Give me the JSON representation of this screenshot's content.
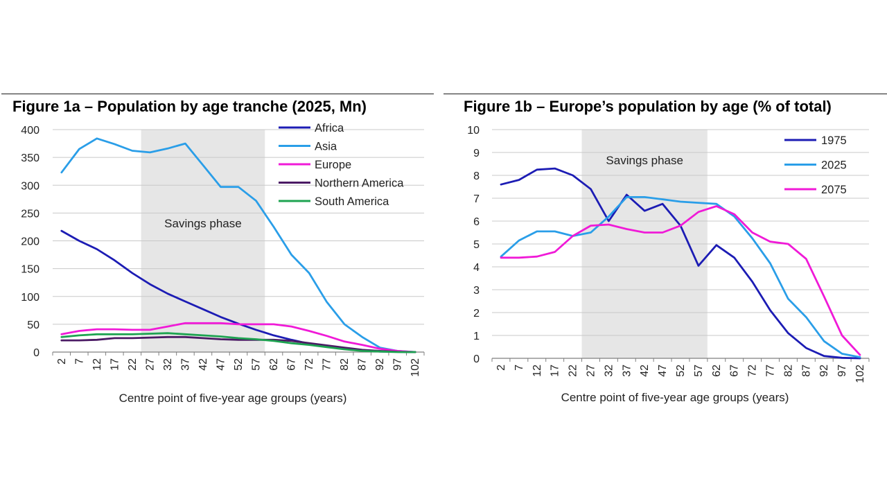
{
  "colors": {
    "africa": "#1c1cb4",
    "asia": "#2a9ee8",
    "europe": "#f01ad7",
    "northern_america": "#4b1a64",
    "south_america": "#1ea351",
    "y1975": "#1c1cb4",
    "y2025": "#2a9ee8",
    "y2075": "#f01ad7",
    "band": "#e6e6e6",
    "grid": "#c8c8c8"
  },
  "chart_data": [
    {
      "type": "line",
      "title": "Figure 1a – Population by age tranche (2025, Mn)",
      "xlabel": "Centre point of five-year age groups (years)",
      "ylabel": "",
      "ylim": [
        0,
        400
      ],
      "yticks": [
        "0",
        "50",
        "100",
        "150",
        "200",
        "250",
        "300",
        "350",
        "400"
      ],
      "categories": [
        "2",
        "7",
        "12",
        "17",
        "22",
        "27",
        "32",
        "37",
        "42",
        "47",
        "52",
        "57",
        "62",
        "67",
        "72",
        "77",
        "82",
        "87",
        "92",
        "97",
        "102"
      ],
      "shaded_region": {
        "from": "27",
        "to": "57",
        "label": "Savings phase"
      },
      "legend_position": "top-right",
      "grid": true,
      "series": [
        {
          "name": "Africa",
          "color_key": "africa",
          "values": [
            218,
            200,
            185,
            165,
            142,
            122,
            105,
            91,
            77,
            63,
            51,
            40,
            30,
            22,
            15,
            10,
            6,
            3,
            1,
            0.5,
            0
          ]
        },
        {
          "name": "Asia",
          "color_key": "asia",
          "values": [
            323,
            365,
            384,
            374,
            362,
            359,
            366,
            375,
            336,
            297,
            297,
            272,
            225,
            175,
            142,
            90,
            50,
            27,
            8,
            2,
            0
          ]
        },
        {
          "name": "Europe",
          "color_key": "europe",
          "values": [
            32,
            38,
            41,
            41,
            40,
            40,
            46,
            52,
            52,
            52,
            50,
            50,
            50,
            46,
            38,
            29,
            19,
            13,
            6,
            2,
            0
          ]
        },
        {
          "name": "Northern America",
          "color_key": "northern_america",
          "values": [
            21,
            21,
            22,
            25,
            25,
            26,
            27,
            27,
            25,
            23,
            22,
            22,
            22,
            20,
            16,
            12,
            8,
            4,
            2,
            0.5,
            0
          ]
        },
        {
          "name": "South America",
          "color_key": "south_america",
          "values": [
            27,
            30,
            32,
            32,
            32,
            33,
            34,
            32,
            30,
            28,
            25,
            23,
            20,
            16,
            13,
            9,
            5,
            2,
            1,
            0,
            0
          ]
        }
      ]
    },
    {
      "type": "line",
      "title": "Figure 1b – Europe’s population by age (% of total)",
      "xlabel": "Centre point of five-year age groups (years)",
      "ylabel": "",
      "ylim": [
        0,
        10
      ],
      "yticks": [
        "0",
        "1",
        "2",
        "3",
        "4",
        "5",
        "6",
        "7",
        "8",
        "9",
        "10"
      ],
      "categories": [
        "2",
        "7",
        "12",
        "17",
        "22",
        "27",
        "32",
        "37",
        "42",
        "47",
        "52",
        "57",
        "62",
        "67",
        "72",
        "77",
        "82",
        "87",
        "92",
        "97",
        "102"
      ],
      "shaded_region": {
        "from": "27",
        "to": "57",
        "label": "Savings phase"
      },
      "legend_position": "top-right",
      "grid": true,
      "series": [
        {
          "name": "1975",
          "color_key": "y1975",
          "values": [
            7.6,
            7.8,
            8.25,
            8.3,
            8.0,
            7.4,
            6.0,
            7.15,
            6.45,
            6.75,
            5.8,
            4.05,
            4.95,
            4.4,
            3.35,
            2.1,
            1.1,
            0.45,
            0.1,
            0.02,
            0
          ]
        },
        {
          "name": "2025",
          "color_key": "y2025",
          "values": [
            4.45,
            5.15,
            5.55,
            5.55,
            5.35,
            5.5,
            6.2,
            7.05,
            7.05,
            6.95,
            6.85,
            6.8,
            6.75,
            6.2,
            5.25,
            4.15,
            2.6,
            1.8,
            0.75,
            0.2,
            0.05
          ]
        },
        {
          "name": "2075",
          "color_key": "y2075",
          "values": [
            4.4,
            4.4,
            4.45,
            4.65,
            5.35,
            5.8,
            5.85,
            5.65,
            5.5,
            5.5,
            5.8,
            6.4,
            6.65,
            6.3,
            5.5,
            5.1,
            5.0,
            4.35,
            2.7,
            1.0,
            0.15
          ]
        }
      ]
    }
  ]
}
